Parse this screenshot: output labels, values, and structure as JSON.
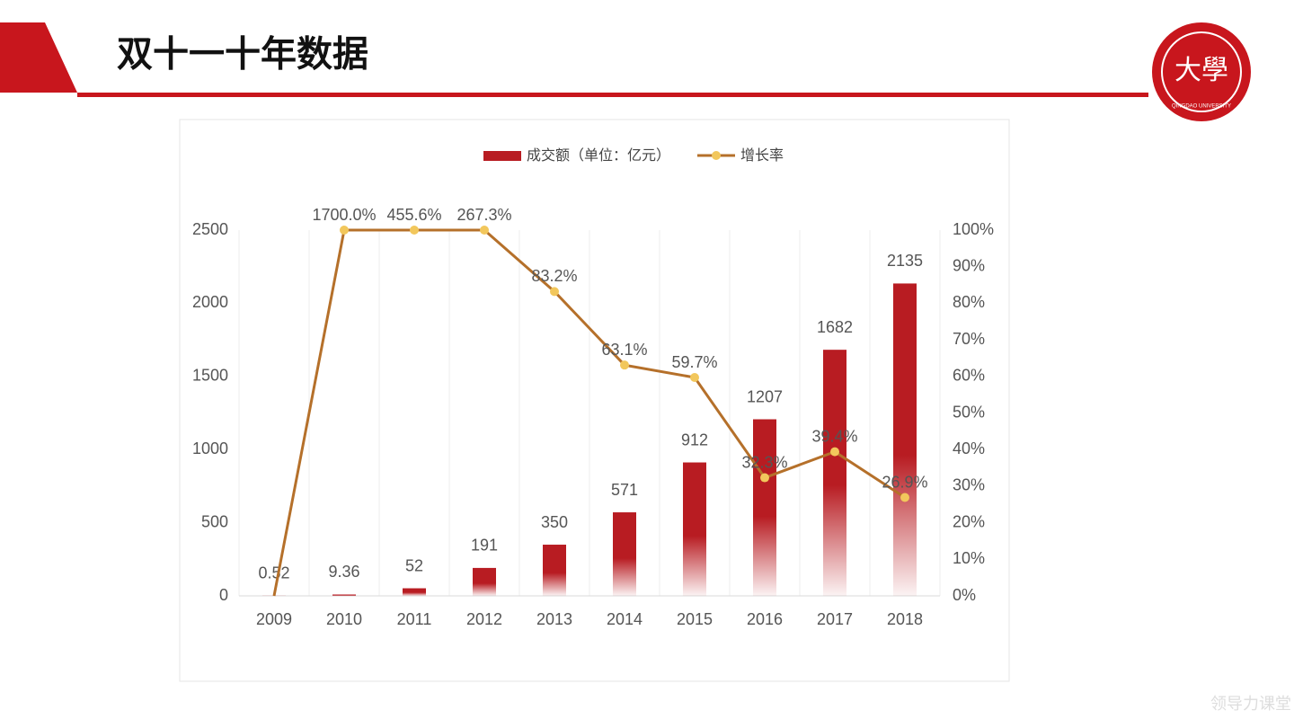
{
  "header": {
    "title": "双十一十年数据",
    "logo_text": "QINGDAO UNIVERSITY",
    "watermark": "领导力课堂"
  },
  "chart_data": {
    "type": "bar",
    "categories": [
      "2009",
      "2010",
      "2011",
      "2012",
      "2013",
      "2014",
      "2015",
      "2016",
      "2017",
      "2018"
    ],
    "series": [
      {
        "name": "成交额（单位：亿元）",
        "type": "bar",
        "color": "#b81c22",
        "values": [
          0.52,
          9.36,
          52,
          191,
          350,
          571,
          912,
          1207,
          1682,
          2135
        ]
      },
      {
        "name": "增长率",
        "type": "line",
        "axis": "y2",
        "color": "#b5702a",
        "marker_color": "#f2c75c",
        "values": [
          0,
          1700,
          455.6,
          267.3,
          83.2,
          63.1,
          59.7,
          32.3,
          39.4,
          26.9
        ],
        "value_labels": [
          null,
          "1700.0%",
          "455.6%",
          "267.3%",
          "83.2%",
          "63.1%",
          "59.7%",
          "32.3%",
          "39.4%",
          "26.9%"
        ]
      }
    ],
    "ylim": [
      0,
      2500
    ],
    "yticks": [
      0,
      500,
      1000,
      1500,
      2000,
      2500
    ],
    "y2lim": [
      0,
      100
    ],
    "y2ticks": [
      {
        "value": 0,
        "label": "0%"
      },
      {
        "value": 10,
        "label": "10%"
      },
      {
        "value": 20,
        "label": "20%"
      },
      {
        "value": 30,
        "label": "30%"
      },
      {
        "value": 40,
        "label": "40%"
      },
      {
        "value": 50,
        "label": "50%"
      },
      {
        "value": 60,
        "label": "60%"
      },
      {
        "value": 70,
        "label": "70%"
      },
      {
        "value": 80,
        "label": "80%"
      },
      {
        "value": 90,
        "label": "90%"
      },
      {
        "value": 100,
        "label": "100%"
      }
    ],
    "legend": "top"
  }
}
